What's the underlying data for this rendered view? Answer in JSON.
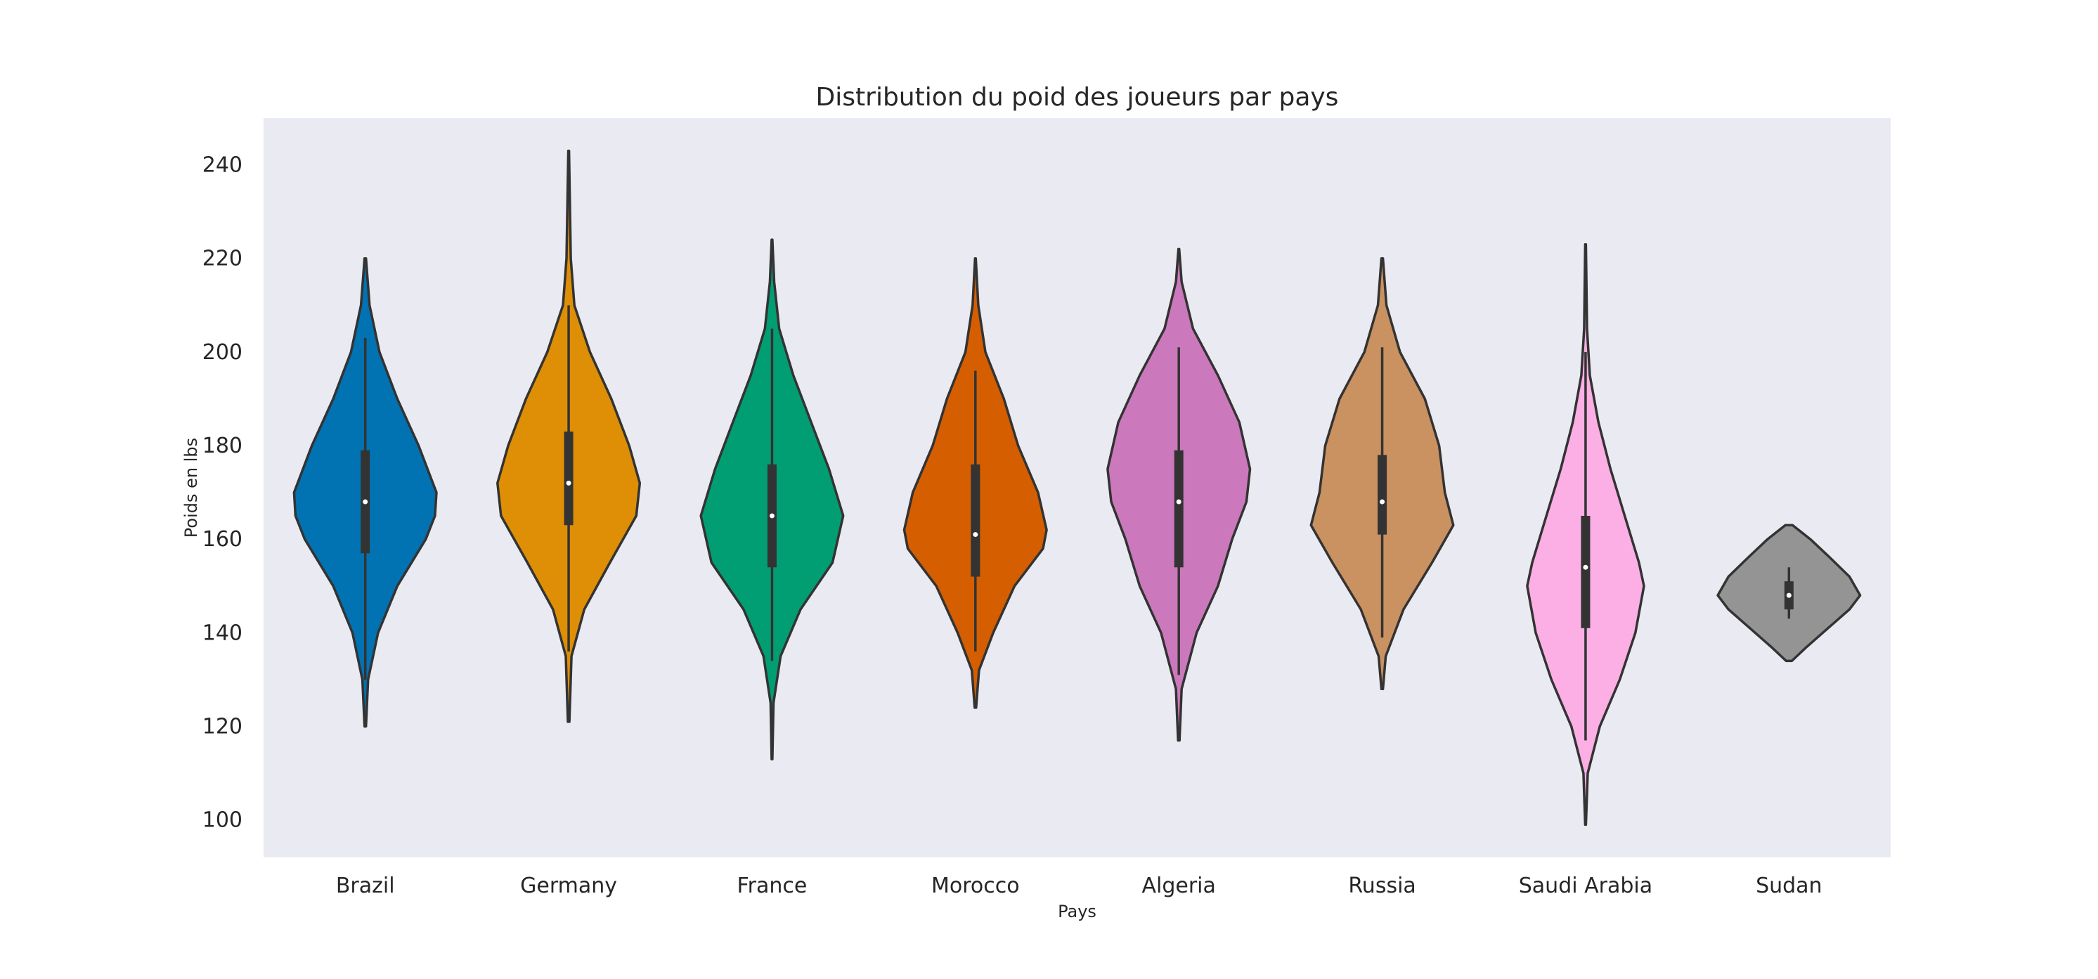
{
  "chart_data": {
    "type": "violin",
    "title": "Distribution du poid des joueurs par pays",
    "xlabel": "Pays",
    "ylabel": "Poids en lbs",
    "ylim": [
      92,
      250
    ],
    "yticks": [
      100,
      120,
      140,
      160,
      180,
      200,
      220,
      240
    ],
    "grid": false,
    "legend": "none",
    "background": "#eaeaf2",
    "categories": [
      "Brazil",
      "Germany",
      "France",
      "Morocco",
      "Algeria",
      "Russia",
      "Saudi Arabia",
      "Sudan"
    ],
    "colors": [
      "#0173b2",
      "#de8f05",
      "#029e73",
      "#d55e00",
      "#cc78bc",
      "#ca9161",
      "#fbafe4",
      "#949494"
    ],
    "series": [
      {
        "category": "Brazil",
        "min": 120,
        "q1": 157,
        "median": 168,
        "q3": 179,
        "max": 220,
        "whisker_low": 130,
        "whisker_high": 203,
        "profile": [
          [
            120,
            0.01
          ],
          [
            130,
            0.04
          ],
          [
            140,
            0.18
          ],
          [
            150,
            0.45
          ],
          [
            160,
            0.85
          ],
          [
            165,
            0.98
          ],
          [
            170,
            1.0
          ],
          [
            180,
            0.75
          ],
          [
            190,
            0.45
          ],
          [
            200,
            0.2
          ],
          [
            210,
            0.06
          ],
          [
            220,
            0.01
          ]
        ]
      },
      {
        "category": "Germany",
        "min": 121,
        "q1": 163,
        "median": 172,
        "q3": 183,
        "max": 243,
        "whisker_low": 136,
        "whisker_high": 210,
        "profile": [
          [
            121,
            0.01
          ],
          [
            135,
            0.04
          ],
          [
            145,
            0.22
          ],
          [
            155,
            0.58
          ],
          [
            165,
            0.95
          ],
          [
            172,
            1.0
          ],
          [
            180,
            0.85
          ],
          [
            190,
            0.6
          ],
          [
            200,
            0.3
          ],
          [
            210,
            0.08
          ],
          [
            220,
            0.03
          ],
          [
            243,
            0.005
          ]
        ]
      },
      {
        "category": "France",
        "min": 113,
        "q1": 154,
        "median": 165,
        "q3": 176,
        "max": 224,
        "whisker_low": 134,
        "whisker_high": 205,
        "profile": [
          [
            113,
            0.005
          ],
          [
            125,
            0.02
          ],
          [
            135,
            0.12
          ],
          [
            145,
            0.4
          ],
          [
            155,
            0.85
          ],
          [
            165,
            1.0
          ],
          [
            175,
            0.8
          ],
          [
            185,
            0.55
          ],
          [
            195,
            0.3
          ],
          [
            205,
            0.1
          ],
          [
            215,
            0.03
          ],
          [
            224,
            0.005
          ]
        ]
      },
      {
        "category": "Morocco",
        "min": 124,
        "q1": 152,
        "median": 161,
        "q3": 176,
        "max": 220,
        "whisker_low": 136,
        "whisker_high": 196,
        "profile": [
          [
            124,
            0.01
          ],
          [
            132,
            0.05
          ],
          [
            140,
            0.25
          ],
          [
            150,
            0.55
          ],
          [
            158,
            0.95
          ],
          [
            162,
            1.0
          ],
          [
            170,
            0.88
          ],
          [
            180,
            0.6
          ],
          [
            190,
            0.4
          ],
          [
            200,
            0.14
          ],
          [
            210,
            0.04
          ],
          [
            220,
            0.005
          ]
        ]
      },
      {
        "category": "Algeria",
        "min": 117,
        "q1": 154,
        "median": 168,
        "q3": 179,
        "max": 222,
        "whisker_low": 131,
        "whisker_high": 201,
        "profile": [
          [
            117,
            0.01
          ],
          [
            128,
            0.04
          ],
          [
            140,
            0.25
          ],
          [
            150,
            0.55
          ],
          [
            160,
            0.75
          ],
          [
            168,
            0.95
          ],
          [
            175,
            1.0
          ],
          [
            185,
            0.85
          ],
          [
            195,
            0.55
          ],
          [
            205,
            0.2
          ],
          [
            215,
            0.04
          ],
          [
            222,
            0.005
          ]
        ]
      },
      {
        "category": "Russia",
        "min": 128,
        "q1": 161,
        "median": 168,
        "q3": 178,
        "max": 220,
        "whisker_low": 139,
        "whisker_high": 201,
        "profile": [
          [
            128,
            0.01
          ],
          [
            135,
            0.05
          ],
          [
            145,
            0.3
          ],
          [
            155,
            0.7
          ],
          [
            163,
            1.0
          ],
          [
            170,
            0.88
          ],
          [
            180,
            0.8
          ],
          [
            190,
            0.6
          ],
          [
            200,
            0.25
          ],
          [
            210,
            0.06
          ],
          [
            220,
            0.01
          ]
        ]
      },
      {
        "category": "Saudi Arabia",
        "min": 99,
        "q1": 141,
        "median": 154,
        "q3": 165,
        "max": 223,
        "whisker_low": 117,
        "whisker_high": 200,
        "profile": [
          [
            99,
            0.005
          ],
          [
            110,
            0.03
          ],
          [
            120,
            0.2
          ],
          [
            130,
            0.48
          ],
          [
            140,
            0.7
          ],
          [
            150,
            0.82
          ],
          [
            155,
            0.75
          ],
          [
            165,
            0.55
          ],
          [
            175,
            0.35
          ],
          [
            185,
            0.18
          ],
          [
            195,
            0.06
          ],
          [
            205,
            0.02
          ],
          [
            223,
            0.005
          ]
        ]
      },
      {
        "category": "Sudan",
        "min": 134,
        "q1": 145,
        "median": 148,
        "q3": 151,
        "max": 163,
        "whisker_low": 143,
        "whisker_high": 154,
        "profile": [
          [
            134,
            0.04
          ],
          [
            137,
            0.25
          ],
          [
            141,
            0.55
          ],
          [
            145,
            0.85
          ],
          [
            148,
            1.0
          ],
          [
            152,
            0.85
          ],
          [
            156,
            0.58
          ],
          [
            160,
            0.3
          ],
          [
            163,
            0.05
          ]
        ]
      }
    ]
  }
}
